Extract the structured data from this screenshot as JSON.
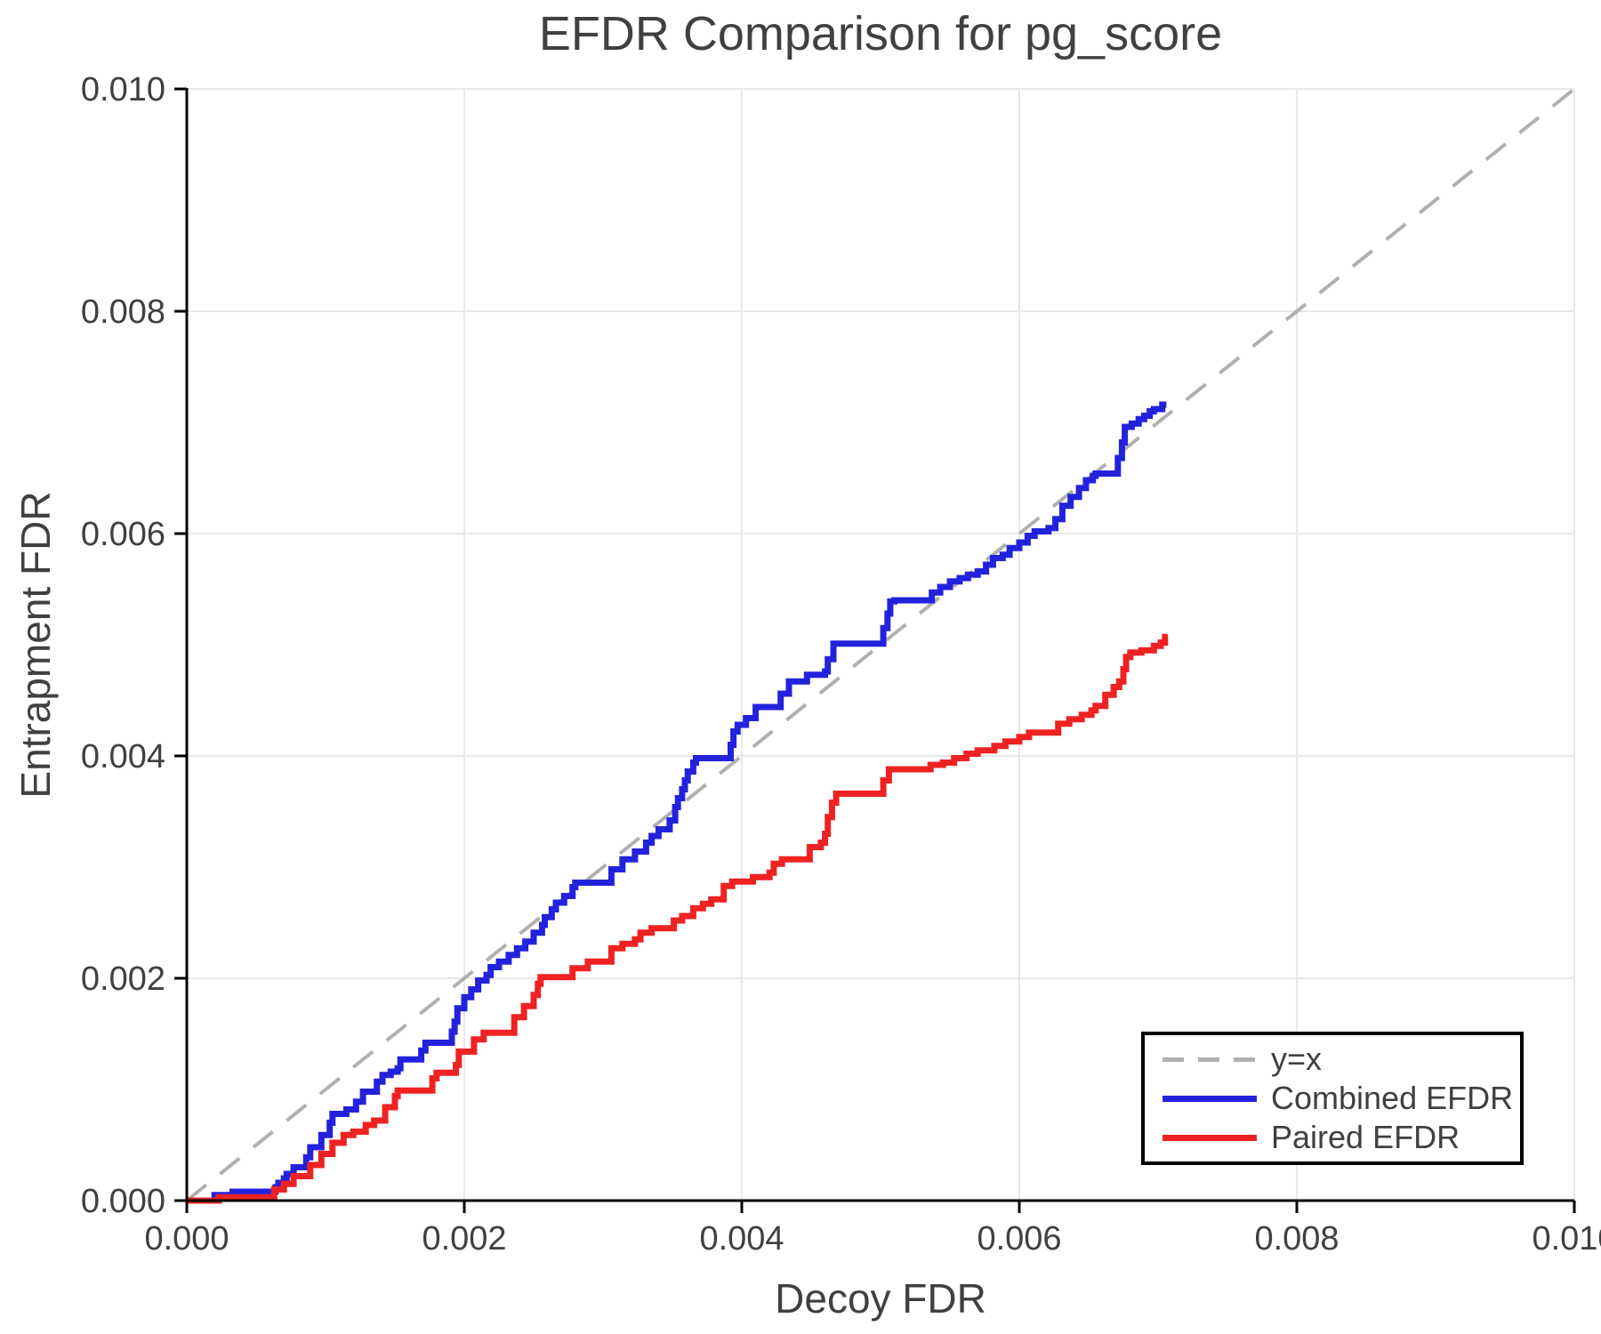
{
  "title": "EFDR Comparison for pg_score",
  "legend": {
    "items": [
      {
        "label": "y=x"
      },
      {
        "label": "Combined EFDR"
      },
      {
        "label": "Paired EFDR"
      }
    ]
  },
  "colors": {
    "text": "#404040",
    "grid": "#e8e8e8",
    "axis": "#000000",
    "reference": "#b0b0b0",
    "combined": "#2222dd",
    "paired": "#ee2222"
  },
  "chart_data": {
    "type": "line",
    "title": "EFDR Comparison for pg_score",
    "xlabel": "Decoy FDR",
    "ylabel": "Entrapment FDR",
    "xlim": [
      0,
      0.01
    ],
    "ylim": [
      0,
      0.01
    ],
    "grid": true,
    "legend_position": "lower right",
    "xticks": [
      {
        "value": 0.0,
        "label": "0.000"
      },
      {
        "value": 0.002,
        "label": "0.002"
      },
      {
        "value": 0.004,
        "label": "0.004"
      },
      {
        "value": 0.006,
        "label": "0.006"
      },
      {
        "value": 0.008,
        "label": "0.008"
      },
      {
        "value": 0.01,
        "label": "0.010"
      }
    ],
    "yticks": [
      {
        "value": 0.0,
        "label": "0.000"
      },
      {
        "value": 0.002,
        "label": "0.002"
      },
      {
        "value": 0.004,
        "label": "0.004"
      },
      {
        "value": 0.006,
        "label": "0.006"
      },
      {
        "value": 0.008,
        "label": "0.008"
      },
      {
        "value": 0.01,
        "label": "0.010"
      }
    ],
    "reference_line": {
      "label": "y=x",
      "style": "dashed",
      "color": "#b0b0b0",
      "from": [
        0,
        0
      ],
      "to": [
        0.01,
        0.01
      ]
    },
    "series": [
      {
        "name": "Combined EFDR",
        "color": "#2222dd",
        "line_width": 7,
        "points": [
          [
            0,
            0
          ],
          [
            0.0002,
            0
          ],
          [
            0.0002,
            5e-05
          ],
          [
            0.00032,
            5e-05
          ],
          [
            0.00033,
            8e-05
          ],
          [
            0.00062,
            8e-05
          ],
          [
            0.00064,
            0.00012
          ],
          [
            0.00066,
            0.00016
          ],
          [
            0.0007,
            0.0002
          ],
          [
            0.00072,
            0.00024
          ],
          [
            0.00077,
            0.0003
          ],
          [
            0.00086,
            0.00039
          ],
          [
            0.00089,
            0.00048
          ],
          [
            0.00097,
            0.00059
          ],
          [
            0.00103,
            0.0007
          ],
          [
            0.00105,
            0.00078
          ],
          [
            0.00113,
            0.00078
          ],
          [
            0.00115,
            0.00082
          ],
          [
            0.00122,
            0.00089
          ],
          [
            0.00127,
            0.00098
          ],
          [
            0.00132,
            0.00098
          ],
          [
            0.00137,
            0.00107
          ],
          [
            0.00141,
            0.00113
          ],
          [
            0.00147,
            0.00116
          ],
          [
            0.00152,
            0.00119
          ],
          [
            0.00154,
            0.00127
          ],
          [
            0.00168,
            0.00127
          ],
          [
            0.00169,
            0.00135
          ],
          [
            0.00172,
            0.00142
          ],
          [
            0.0019,
            0.00142
          ],
          [
            0.00191,
            0.00152
          ],
          [
            0.00193,
            0.00161
          ],
          [
            0.00195,
            0.00173
          ],
          [
            0.002,
            0.00183
          ],
          [
            0.00205,
            0.0019
          ],
          [
            0.0021,
            0.00198
          ],
          [
            0.00216,
            0.00203
          ],
          [
            0.00219,
            0.0021
          ],
          [
            0.00225,
            0.00215
          ],
          [
            0.00232,
            0.00221
          ],
          [
            0.00238,
            0.00227
          ],
          [
            0.00244,
            0.00233
          ],
          [
            0.0025,
            0.00241
          ],
          [
            0.00256,
            0.00248
          ],
          [
            0.00258,
            0.00255
          ],
          [
            0.00263,
            0.00262
          ],
          [
            0.00266,
            0.00268
          ],
          [
            0.00272,
            0.00274
          ],
          [
            0.00278,
            0.00282
          ],
          [
            0.0028,
            0.00286
          ],
          [
            0.00301,
            0.00286
          ],
          [
            0.00306,
            0.00298
          ],
          [
            0.00314,
            0.00307
          ],
          [
            0.00323,
            0.00314
          ],
          [
            0.00331,
            0.00322
          ],
          [
            0.00335,
            0.00328
          ],
          [
            0.0034,
            0.00334
          ],
          [
            0.00348,
            0.00342
          ],
          [
            0.00352,
            0.00354
          ],
          [
            0.00354,
            0.00362
          ],
          [
            0.00357,
            0.0037
          ],
          [
            0.00359,
            0.00378
          ],
          [
            0.00361,
            0.00386
          ],
          [
            0.00365,
            0.00394
          ],
          [
            0.00367,
            0.00398
          ],
          [
            0.0039,
            0.00398
          ],
          [
            0.00392,
            0.0041
          ],
          [
            0.00394,
            0.00422
          ],
          [
            0.00397,
            0.00428
          ],
          [
            0.00403,
            0.00434
          ],
          [
            0.0041,
            0.00444
          ],
          [
            0.00424,
            0.00444
          ],
          [
            0.00428,
            0.00456
          ],
          [
            0.00434,
            0.00467
          ],
          [
            0.00442,
            0.00467
          ],
          [
            0.00447,
            0.00473
          ],
          [
            0.0046,
            0.00476
          ],
          [
            0.00462,
            0.00487
          ],
          [
            0.00466,
            0.00501
          ],
          [
            0.005,
            0.00501
          ],
          [
            0.00502,
            0.00515
          ],
          [
            0.00505,
            0.00528
          ],
          [
            0.00507,
            0.00539
          ],
          [
            0.0051,
            0.0054
          ],
          [
            0.00532,
            0.0054
          ],
          [
            0.00537,
            0.00547
          ],
          [
            0.00543,
            0.00552
          ],
          [
            0.0055,
            0.00557
          ],
          [
            0.00557,
            0.0056
          ],
          [
            0.00563,
            0.00563
          ],
          [
            0.0057,
            0.00566
          ],
          [
            0.00576,
            0.00572
          ],
          [
            0.00581,
            0.00578
          ],
          [
            0.00588,
            0.00581
          ],
          [
            0.00593,
            0.00587
          ],
          [
            0.006,
            0.00592
          ],
          [
            0.00606,
            0.00598
          ],
          [
            0.00611,
            0.00602
          ],
          [
            0.00621,
            0.00605
          ],
          [
            0.00626,
            0.00613
          ],
          [
            0.00631,
            0.00625
          ],
          [
            0.00637,
            0.00633
          ],
          [
            0.00643,
            0.00641
          ],
          [
            0.00648,
            0.00648
          ],
          [
            0.00653,
            0.00652
          ],
          [
            0.00655,
            0.00654
          ],
          [
            0.00668,
            0.00654
          ],
          [
            0.00671,
            0.00668
          ],
          [
            0.00674,
            0.00682
          ],
          [
            0.00676,
            0.00696
          ],
          [
            0.00681,
            0.00699
          ],
          [
            0.00686,
            0.00703
          ],
          [
            0.0069,
            0.00706
          ],
          [
            0.00694,
            0.0071
          ],
          [
            0.00697,
            0.00712
          ],
          [
            0.00702,
            0.00712
          ],
          [
            0.00703,
            0.00716
          ],
          [
            0.00706,
            0.00716
          ]
        ]
      },
      {
        "name": "Paired EFDR",
        "color": "#ee2222",
        "line_width": 7,
        "points": [
          [
            0,
            0
          ],
          [
            0.00022,
            0
          ],
          [
            0.00023,
            3e-05
          ],
          [
            0.0006,
            3e-05
          ],
          [
            0.00063,
            0.0001
          ],
          [
            0.0007,
            0.00015
          ],
          [
            0.00077,
            0.00022
          ],
          [
            0.00089,
            0.00032
          ],
          [
            0.00097,
            0.00042
          ],
          [
            0.00105,
            0.00052
          ],
          [
            0.00113,
            0.00059
          ],
          [
            0.0012,
            0.00062
          ],
          [
            0.00129,
            0.00068
          ],
          [
            0.00135,
            0.00072
          ],
          [
            0.00143,
            0.00084
          ],
          [
            0.0015,
            0.00094
          ],
          [
            0.00152,
            0.00099
          ],
          [
            0.00173,
            0.00099
          ],
          [
            0.00177,
            0.0011
          ],
          [
            0.0018,
            0.00115
          ],
          [
            0.00192,
            0.00115
          ],
          [
            0.00194,
            0.00122
          ],
          [
            0.00196,
            0.00134
          ],
          [
            0.00206,
            0.00134
          ],
          [
            0.00207,
            0.00145
          ],
          [
            0.00214,
            0.00151
          ],
          [
            0.00233,
            0.00151
          ],
          [
            0.00236,
            0.00165
          ],
          [
            0.00243,
            0.00175
          ],
          [
            0.0025,
            0.00185
          ],
          [
            0.00253,
            0.00195
          ],
          [
            0.00255,
            0.00201
          ],
          [
            0.00269,
            0.00201
          ],
          [
            0.00278,
            0.00209
          ],
          [
            0.00289,
            0.00215
          ],
          [
            0.00302,
            0.00215
          ],
          [
            0.00306,
            0.00227
          ],
          [
            0.00314,
            0.00231
          ],
          [
            0.00323,
            0.00235
          ],
          [
            0.00327,
            0.00241
          ],
          [
            0.00335,
            0.00245
          ],
          [
            0.00345,
            0.00245
          ],
          [
            0.00351,
            0.00252
          ],
          [
            0.00357,
            0.00256
          ],
          [
            0.00365,
            0.00263
          ],
          [
            0.00372,
            0.00267
          ],
          [
            0.00378,
            0.00271
          ],
          [
            0.00387,
            0.00283
          ],
          [
            0.00393,
            0.00287
          ],
          [
            0.00405,
            0.00287
          ],
          [
            0.00408,
            0.00291
          ],
          [
            0.0042,
            0.00295
          ],
          [
            0.00423,
            0.00303
          ],
          [
            0.00429,
            0.00307
          ],
          [
            0.00446,
            0.00307
          ],
          [
            0.00449,
            0.00318
          ],
          [
            0.00457,
            0.00322
          ],
          [
            0.0046,
            0.0033
          ],
          [
            0.00462,
            0.00345
          ],
          [
            0.00465,
            0.00358
          ],
          [
            0.00468,
            0.00366
          ],
          [
            0.00498,
            0.00366
          ],
          [
            0.00502,
            0.00378
          ],
          [
            0.00506,
            0.00388
          ],
          [
            0.00532,
            0.00388
          ],
          [
            0.00536,
            0.00392
          ],
          [
            0.00545,
            0.00394
          ],
          [
            0.00553,
            0.00398
          ],
          [
            0.00562,
            0.00402
          ],
          [
            0.0057,
            0.00405
          ],
          [
            0.00582,
            0.00409
          ],
          [
            0.0059,
            0.00413
          ],
          [
            0.006,
            0.00417
          ],
          [
            0.00607,
            0.00421
          ],
          [
            0.00623,
            0.00421
          ],
          [
            0.00628,
            0.00429
          ],
          [
            0.00636,
            0.00433
          ],
          [
            0.00645,
            0.00437
          ],
          [
            0.00652,
            0.00441
          ],
          [
            0.00655,
            0.00445
          ],
          [
            0.00662,
            0.00455
          ],
          [
            0.00668,
            0.00462
          ],
          [
            0.00672,
            0.00467
          ],
          [
            0.00675,
            0.00478
          ],
          [
            0.00677,
            0.00489
          ],
          [
            0.0068,
            0.00493
          ],
          [
            0.00688,
            0.00495
          ],
          [
            0.00693,
            0.00495
          ],
          [
            0.00697,
            0.00499
          ],
          [
            0.00702,
            0.00502
          ],
          [
            0.00704,
            0.00502
          ],
          [
            0.00705,
            0.00507
          ],
          [
            0.00707,
            0.00507
          ]
        ]
      }
    ]
  }
}
